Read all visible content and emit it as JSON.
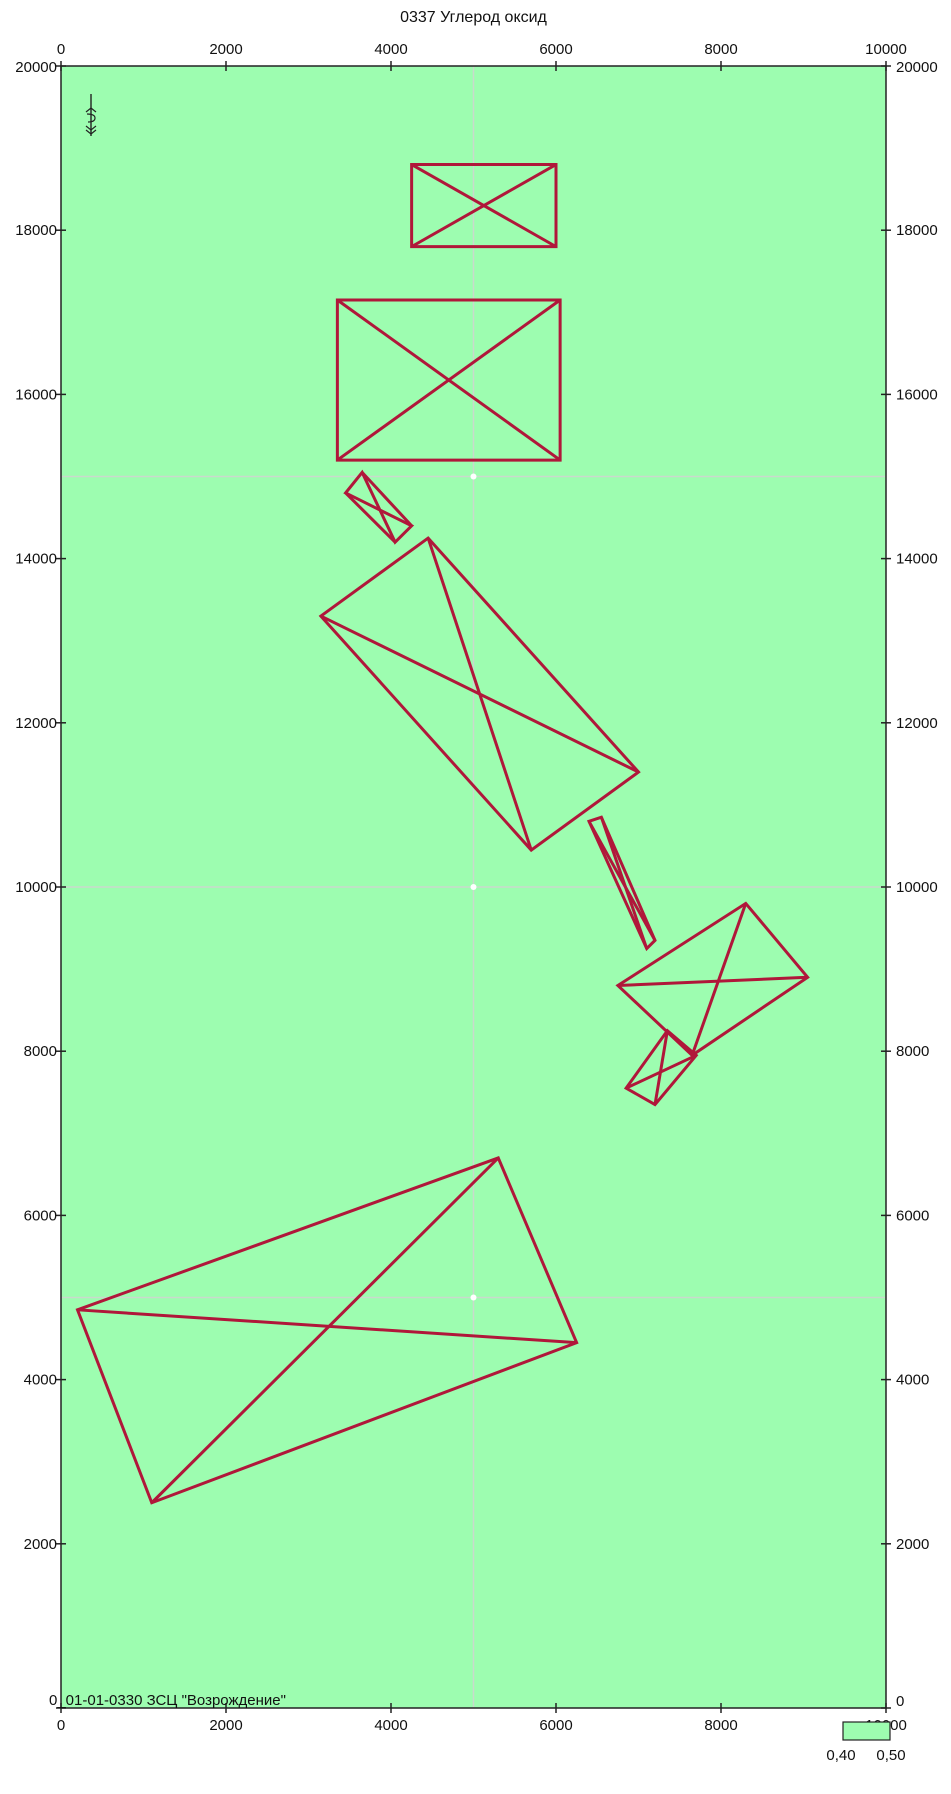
{
  "title": "0337 Углерод оксид",
  "caption": "0_01-01-0330 ЗСЦ  \"Возрождение\"",
  "colors": {
    "field": "#9dfdb0",
    "outline": "#b0173a",
    "grid": "#c9d9cc",
    "axis": "#222222"
  },
  "chart_data": {
    "type": "map",
    "xlim": [
      0,
      10000
    ],
    "ylim": [
      0,
      20000
    ],
    "x_ticks": [
      0,
      2000,
      4000,
      6000,
      8000,
      10000
    ],
    "y_ticks": [
      0,
      2000,
      4000,
      6000,
      8000,
      10000,
      12000,
      14000,
      16000,
      18000,
      20000
    ],
    "grid_x": [
      5000
    ],
    "grid_y": [
      5000,
      10000,
      15000
    ],
    "grid_nodes": [
      [
        5000,
        15000
      ],
      [
        5000,
        10000
      ],
      [
        5000,
        5000
      ]
    ],
    "north_arrow": "north-arrow-icon",
    "legend": {
      "range_min": "0,40",
      "range_max": "0,50",
      "color": "#9dfdb0"
    },
    "sources": [
      {
        "corners": [
          [
            4250,
            18800
          ],
          [
            6000,
            18800
          ],
          [
            6000,
            17800
          ],
          [
            4250,
            17800
          ]
        ]
      },
      {
        "corners": [
          [
            3350,
            17150
          ],
          [
            6050,
            17150
          ],
          [
            6050,
            15200
          ],
          [
            3350,
            15200
          ]
        ]
      },
      {
        "corners": [
          [
            3650,
            15050
          ],
          [
            4050,
            14200
          ],
          [
            4250,
            14400
          ],
          [
            3450,
            14800
          ]
        ]
      },
      {
        "corners": [
          [
            3150,
            13300
          ],
          [
            4450,
            14250
          ],
          [
            7000,
            11400
          ],
          [
            5700,
            10450
          ]
        ]
      },
      {
        "corners": [
          [
            6400,
            10800
          ],
          [
            6550,
            10850
          ],
          [
            7200,
            9350
          ],
          [
            7100,
            9250
          ]
        ]
      },
      {
        "corners": [
          [
            6750,
            8800
          ],
          [
            8300,
            9800
          ],
          [
            9050,
            8900
          ],
          [
            7650,
            7950
          ]
        ]
      },
      {
        "corners": [
          [
            6850,
            7550
          ],
          [
            7350,
            8250
          ],
          [
            7700,
            7950
          ],
          [
            7200,
            7350
          ]
        ]
      },
      {
        "corners": [
          [
            200,
            4850
          ],
          [
            5300,
            6700
          ],
          [
            6250,
            4450
          ],
          [
            1100,
            2500
          ]
        ]
      }
    ]
  }
}
